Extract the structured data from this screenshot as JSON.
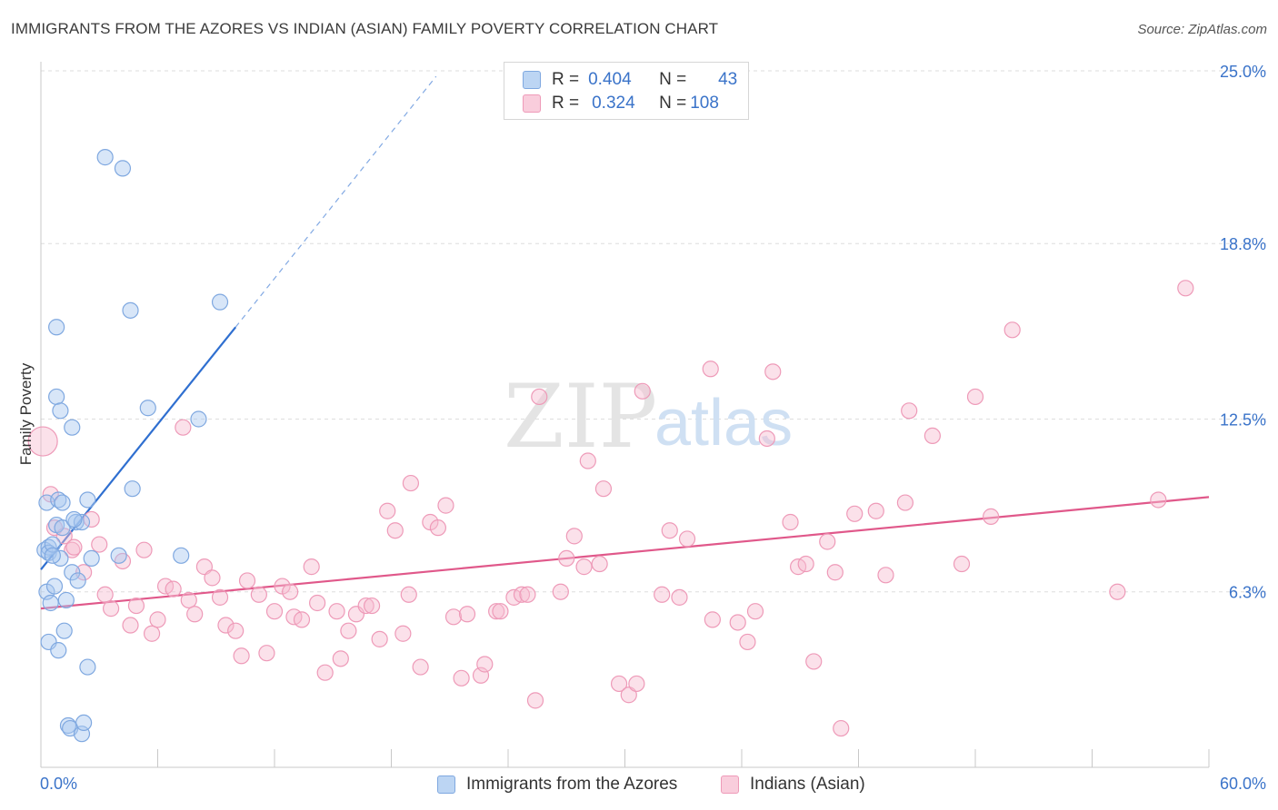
{
  "title": "IMMIGRANTS FROM THE AZORES VS INDIAN (ASIAN) FAMILY POVERTY CORRELATION CHART",
  "source": "Source: ZipAtlas.com",
  "watermark": {
    "zip": "ZIP",
    "atlas": "atlas"
  },
  "legend": {
    "series1": {
      "r_label": "R =",
      "r_value": "0.404",
      "n_label": "N =",
      "n_value": "43"
    },
    "series2": {
      "r_label": "R =",
      "r_value": "0.324",
      "n_label": "N =",
      "n_value": "108"
    }
  },
  "colors": {
    "blue_fill": "#a9c8f0",
    "blue_stroke": "#7fa8e0",
    "blue_line": "#2f6fd0",
    "pink_fill": "#f6bcd0",
    "pink_stroke": "#ee9ab8",
    "pink_line": "#e0588a",
    "axis_text": "#3a73c9",
    "grid": "#dddddd"
  },
  "chart_data": {
    "type": "scatter",
    "xlabel": "",
    "ylabel": "Family Poverty",
    "xlim": [
      0,
      60
    ],
    "ylim": [
      0,
      25
    ],
    "x_tick_labels": [
      "0.0%",
      "60.0%"
    ],
    "y_ticks": [
      6.3,
      12.5,
      18.8,
      25.0
    ],
    "y_tick_labels": [
      "6.3%",
      "12.5%",
      "18.8%",
      "25.0%"
    ],
    "series": [
      {
        "name": "Immigrants from the Azores",
        "color": "blue",
        "trend": {
          "x0": 0,
          "y0": 7.1,
          "x1": 10,
          "y1": 15.8,
          "dash_x1": 20.3,
          "dash_y1": 24.8
        },
        "points": [
          [
            0.2,
            7.8
          ],
          [
            0.3,
            9.5
          ],
          [
            0.3,
            6.3
          ],
          [
            0.4,
            4.5
          ],
          [
            0.4,
            7.9
          ],
          [
            0.4,
            7.7
          ],
          [
            0.5,
            5.9
          ],
          [
            0.6,
            8.0
          ],
          [
            0.7,
            6.5
          ],
          [
            0.8,
            13.3
          ],
          [
            0.8,
            8.7
          ],
          [
            0.8,
            15.8
          ],
          [
            0.9,
            9.6
          ],
          [
            0.9,
            4.2
          ],
          [
            1.0,
            12.8
          ],
          [
            1.0,
            7.5
          ],
          [
            1.1,
            8.6
          ],
          [
            1.1,
            9.5
          ],
          [
            1.2,
            4.9
          ],
          [
            1.3,
            6.0
          ],
          [
            1.4,
            1.5
          ],
          [
            1.5,
            1.4
          ],
          [
            1.6,
            7.0
          ],
          [
            1.6,
            12.2
          ],
          [
            1.8,
            8.8
          ],
          [
            1.9,
            6.7
          ],
          [
            2.1,
            1.2
          ],
          [
            2.1,
            8.8
          ],
          [
            2.2,
            1.6
          ],
          [
            2.4,
            9.6
          ],
          [
            2.4,
            3.6
          ],
          [
            2.6,
            7.5
          ],
          [
            3.3,
            21.9
          ],
          [
            4.0,
            7.6
          ],
          [
            4.2,
            21.5
          ],
          [
            4.6,
            16.4
          ],
          [
            4.7,
            10.0
          ],
          [
            5.5,
            12.9
          ],
          [
            7.2,
            7.6
          ],
          [
            8.1,
            12.5
          ],
          [
            9.2,
            16.7
          ],
          [
            0.6,
            7.6
          ],
          [
            1.7,
            8.9
          ]
        ]
      },
      {
        "name": "Indians (Asian)",
        "color": "pink",
        "trend": {
          "x0": 0,
          "y0": 5.7,
          "x1": 60,
          "y1": 9.7
        },
        "points": [
          [
            0.1,
            11.7
          ],
          [
            0.5,
            9.8
          ],
          [
            0.7,
            8.6
          ],
          [
            1.2,
            8.3
          ],
          [
            1.6,
            7.8
          ],
          [
            1.7,
            7.9
          ],
          [
            2.2,
            7.0
          ],
          [
            2.6,
            8.9
          ],
          [
            3.0,
            8.0
          ],
          [
            3.3,
            6.2
          ],
          [
            3.6,
            5.7
          ],
          [
            4.2,
            7.4
          ],
          [
            4.6,
            5.1
          ],
          [
            4.9,
            5.8
          ],
          [
            5.3,
            7.8
          ],
          [
            5.7,
            4.8
          ],
          [
            6.0,
            5.3
          ],
          [
            6.4,
            6.5
          ],
          [
            6.8,
            6.4
          ],
          [
            7.3,
            12.2
          ],
          [
            7.6,
            6.0
          ],
          [
            7.9,
            5.5
          ],
          [
            8.4,
            7.2
          ],
          [
            8.8,
            6.8
          ],
          [
            9.2,
            6.1
          ],
          [
            9.5,
            5.1
          ],
          [
            10.0,
            4.9
          ],
          [
            10.3,
            4.0
          ],
          [
            10.6,
            6.7
          ],
          [
            11.2,
            6.2
          ],
          [
            11.6,
            4.1
          ],
          [
            12.0,
            5.6
          ],
          [
            12.4,
            6.5
          ],
          [
            12.8,
            6.3
          ],
          [
            13.0,
            5.4
          ],
          [
            13.4,
            5.3
          ],
          [
            13.9,
            7.2
          ],
          [
            14.2,
            5.9
          ],
          [
            14.6,
            3.4
          ],
          [
            15.2,
            5.6
          ],
          [
            15.4,
            3.9
          ],
          [
            15.8,
            4.9
          ],
          [
            16.2,
            5.5
          ],
          [
            16.7,
            5.8
          ],
          [
            17.0,
            5.8
          ],
          [
            17.4,
            4.6
          ],
          [
            17.8,
            9.2
          ],
          [
            18.2,
            8.5
          ],
          [
            18.6,
            4.8
          ],
          [
            18.9,
            6.2
          ],
          [
            19.0,
            10.2
          ],
          [
            19.5,
            3.6
          ],
          [
            20.0,
            8.8
          ],
          [
            20.4,
            8.6
          ],
          [
            20.8,
            9.4
          ],
          [
            21.2,
            5.4
          ],
          [
            21.6,
            3.2
          ],
          [
            21.9,
            5.5
          ],
          [
            22.6,
            3.3
          ],
          [
            22.8,
            3.7
          ],
          [
            23.4,
            5.6
          ],
          [
            23.6,
            5.6
          ],
          [
            24.3,
            6.1
          ],
          [
            24.7,
            6.2
          ],
          [
            25.0,
            6.2
          ],
          [
            25.4,
            2.4
          ],
          [
            25.6,
            13.3
          ],
          [
            26.7,
            6.3
          ],
          [
            27.0,
            7.5
          ],
          [
            27.4,
            8.3
          ],
          [
            27.9,
            7.2
          ],
          [
            28.1,
            11.0
          ],
          [
            28.7,
            7.3
          ],
          [
            28.9,
            10.0
          ],
          [
            29.7,
            3.0
          ],
          [
            30.2,
            2.6
          ],
          [
            30.6,
            3.0
          ],
          [
            30.9,
            13.5
          ],
          [
            31.9,
            6.2
          ],
          [
            32.3,
            8.5
          ],
          [
            32.8,
            6.1
          ],
          [
            33.2,
            8.2
          ],
          [
            34.4,
            14.3
          ],
          [
            34.5,
            5.3
          ],
          [
            35.8,
            5.2
          ],
          [
            36.3,
            4.5
          ],
          [
            36.7,
            5.6
          ],
          [
            37.3,
            11.8
          ],
          [
            37.6,
            14.2
          ],
          [
            38.5,
            8.8
          ],
          [
            38.9,
            7.2
          ],
          [
            39.3,
            7.3
          ],
          [
            39.7,
            3.8
          ],
          [
            40.4,
            8.1
          ],
          [
            40.8,
            7.0
          ],
          [
            41.1,
            1.4
          ],
          [
            41.8,
            9.1
          ],
          [
            42.9,
            9.2
          ],
          [
            43.4,
            6.9
          ],
          [
            44.4,
            9.5
          ],
          [
            44.6,
            12.8
          ],
          [
            45.8,
            11.9
          ],
          [
            47.3,
            7.3
          ],
          [
            48.0,
            13.3
          ],
          [
            48.8,
            9.0
          ],
          [
            49.9,
            15.7
          ],
          [
            55.3,
            6.3
          ],
          [
            57.4,
            9.6
          ],
          [
            58.8,
            17.2
          ]
        ]
      }
    ]
  },
  "bottom_legend": {
    "series1_label": "Immigrants from the Azores",
    "series2_label": "Indians (Asian)"
  }
}
